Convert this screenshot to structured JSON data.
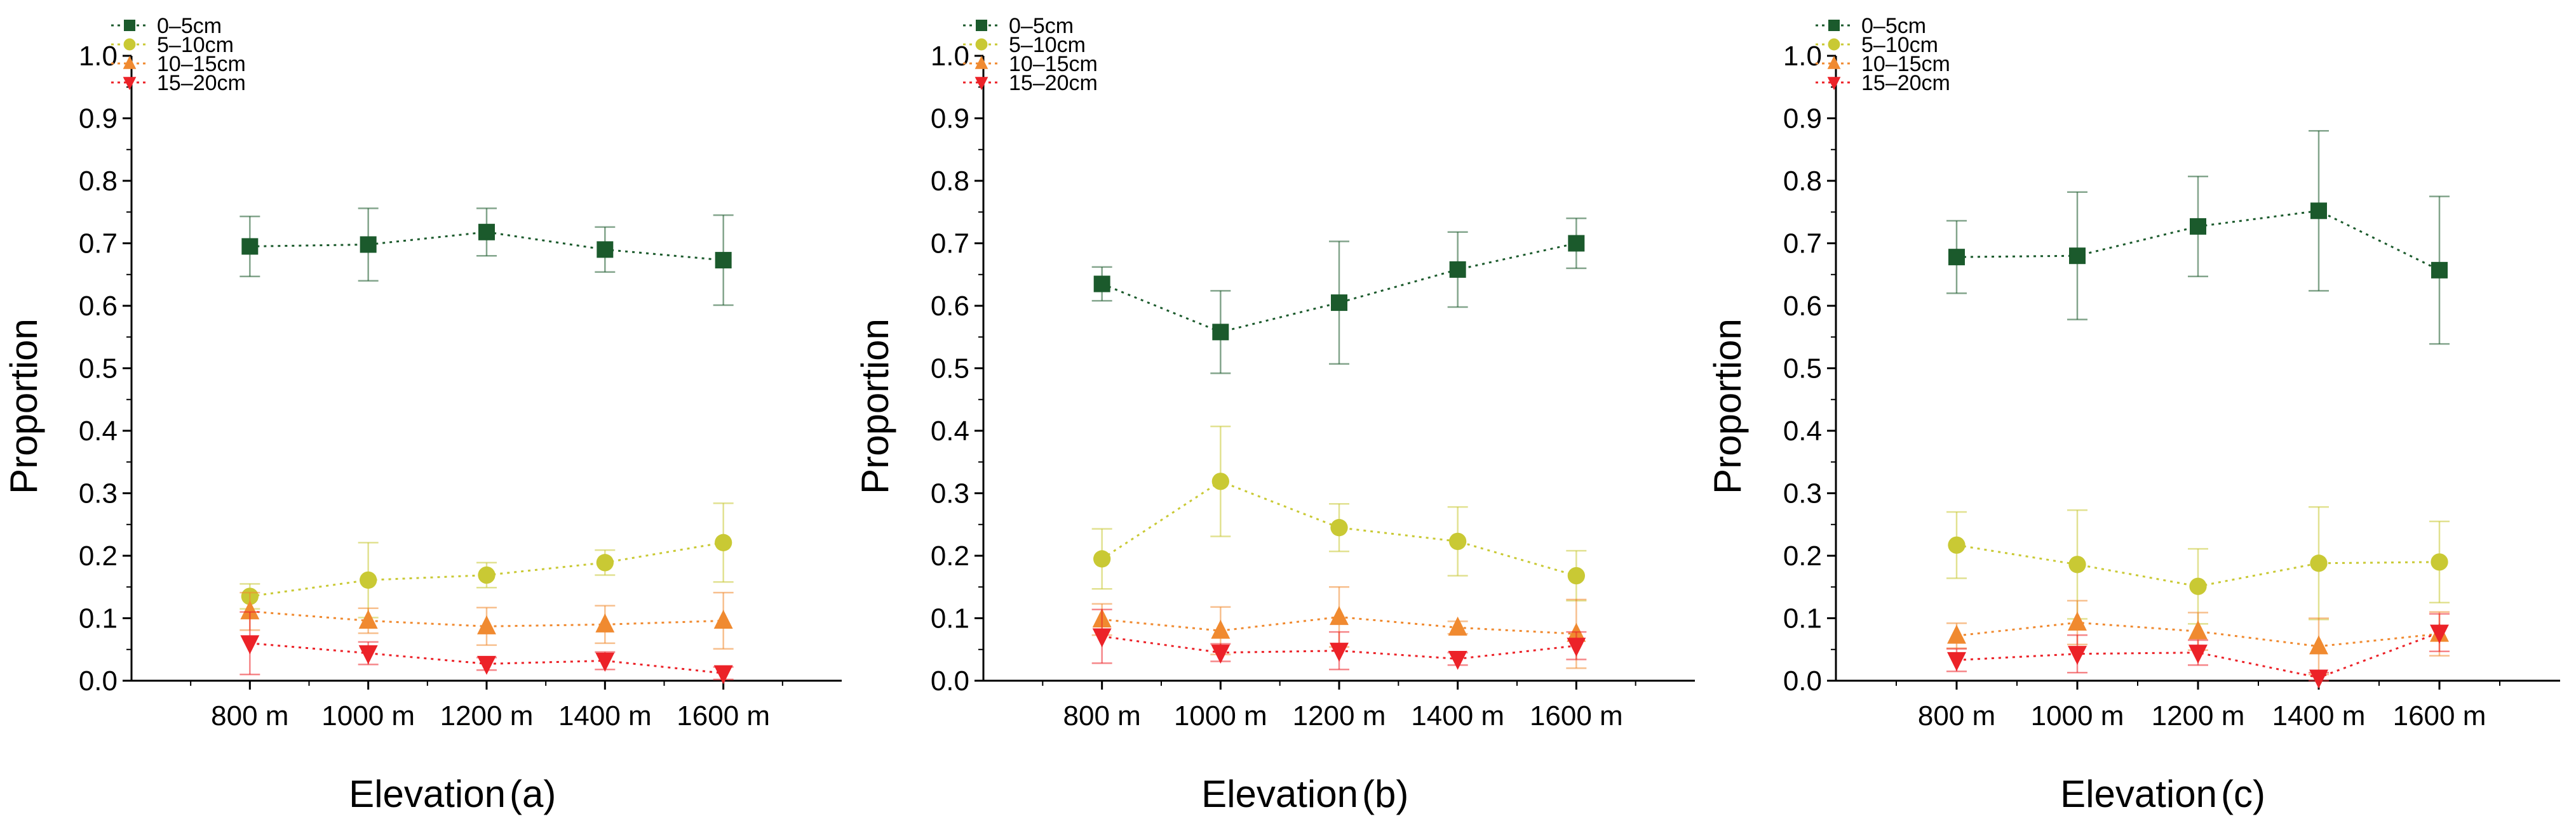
{
  "chart_data": [
    {
      "type": "line",
      "title": "",
      "xlabel": "Elevation",
      "panel_label": "(a)",
      "ylabel": "Proportion",
      "categories": [
        "800 m",
        "1000 m",
        "1200 m",
        "1400 m",
        "1600 m"
      ],
      "ylim": [
        0,
        1.0
      ],
      "yticks": [
        "0.0",
        "0.1",
        "0.2",
        "0.3",
        "0.4",
        "0.5",
        "0.6",
        "0.7",
        "0.8",
        "0.9",
        "1.0"
      ],
      "grid": false,
      "legend_position": "top-left",
      "series": [
        {
          "name": "0–5cm",
          "marker": "square",
          "color": "#1b5a2c",
          "values": [
            0.695,
            0.698,
            0.718,
            0.69,
            0.673
          ],
          "errors": [
            0.048,
            0.058,
            0.038,
            0.036,
            0.072
          ]
        },
        {
          "name": "5–10cm",
          "marker": "circle",
          "color": "#c9c934",
          "values": [
            0.135,
            0.161,
            0.169,
            0.189,
            0.221
          ],
          "errors": [
            0.02,
            0.06,
            0.02,
            0.02,
            0.063
          ]
        },
        {
          "name": "10–15cm",
          "marker": "triangle-up",
          "color": "#f08a30",
          "values": [
            0.111,
            0.096,
            0.087,
            0.09,
            0.096
          ],
          "errors": [
            0.03,
            0.02,
            0.03,
            0.03,
            0.045
          ]
        },
        {
          "name": "15–20cm",
          "marker": "triangle-down",
          "color": "#ec2228",
          "values": [
            0.06,
            0.044,
            0.027,
            0.032,
            0.012
          ],
          "errors": [
            0.05,
            0.018,
            0.01,
            0.014,
            0.01
          ]
        }
      ]
    },
    {
      "type": "line",
      "title": "",
      "xlabel": "Elevation",
      "panel_label": "(b)",
      "ylabel": "Proportion",
      "categories": [
        "800 m",
        "1000 m",
        "1200 m",
        "1400 m",
        "1600 m"
      ],
      "ylim": [
        0,
        1.0
      ],
      "yticks": [
        "0.0",
        "0.1",
        "0.2",
        "0.3",
        "0.4",
        "0.5",
        "0.6",
        "0.7",
        "0.8",
        "0.9",
        "1.0"
      ],
      "grid": false,
      "legend_position": "top-left",
      "series": [
        {
          "name": "0–5cm",
          "marker": "square",
          "color": "#1b5a2c",
          "values": [
            0.635,
            0.558,
            0.605,
            0.658,
            0.7
          ],
          "errors": [
            0.027,
            0.066,
            0.098,
            0.06,
            0.04
          ]
        },
        {
          "name": "5–10cm",
          "marker": "circle",
          "color": "#c9c934",
          "values": [
            0.195,
            0.319,
            0.245,
            0.223,
            0.168
          ],
          "errors": [
            0.048,
            0.088,
            0.038,
            0.055,
            0.04
          ]
        },
        {
          "name": "10–15cm",
          "marker": "triangle-up",
          "color": "#f08a30",
          "values": [
            0.098,
            0.08,
            0.102,
            0.085,
            0.075
          ],
          "errors": [
            0.025,
            0.038,
            0.048,
            0.01,
            0.055
          ]
        },
        {
          "name": "15–20cm",
          "marker": "triangle-down",
          "color": "#ec2228",
          "values": [
            0.071,
            0.045,
            0.048,
            0.035,
            0.056
          ],
          "errors": [
            0.043,
            0.014,
            0.03,
            0.01,
            0.022
          ]
        }
      ]
    },
    {
      "type": "line",
      "title": "",
      "xlabel": "Elevation",
      "panel_label": "(c)",
      "ylabel": "Proportion",
      "categories": [
        "800 m",
        "1000 m",
        "1200 m",
        "1400 m",
        "1600 m"
      ],
      "ylim": [
        0,
        1.0
      ],
      "yticks": [
        "0.0",
        "0.1",
        "0.2",
        "0.3",
        "0.4",
        "0.5",
        "0.6",
        "0.7",
        "0.8",
        "0.9",
        "1.0"
      ],
      "grid": false,
      "legend_position": "top-left",
      "series": [
        {
          "name": "0–5cm",
          "marker": "square",
          "color": "#1b5a2c",
          "values": [
            0.678,
            0.68,
            0.727,
            0.752,
            0.657
          ],
          "errors": [
            0.058,
            0.102,
            0.08,
            0.128,
            0.118
          ]
        },
        {
          "name": "5–10cm",
          "marker": "circle",
          "color": "#c9c934",
          "values": [
            0.217,
            0.186,
            0.151,
            0.188,
            0.19
          ],
          "errors": [
            0.053,
            0.087,
            0.06,
            0.09,
            0.065
          ]
        },
        {
          "name": "10–15cm",
          "marker": "triangle-up",
          "color": "#f08a30",
          "values": [
            0.072,
            0.093,
            0.079,
            0.055,
            0.075
          ],
          "errors": [
            0.02,
            0.035,
            0.03,
            0.045,
            0.035
          ]
        },
        {
          "name": "15–20cm",
          "marker": "triangle-down",
          "color": "#ec2228",
          "values": [
            0.033,
            0.043,
            0.045,
            0.005,
            0.077
          ],
          "errors": [
            0.018,
            0.03,
            0.02,
            0.008,
            0.03
          ]
        }
      ]
    }
  ]
}
